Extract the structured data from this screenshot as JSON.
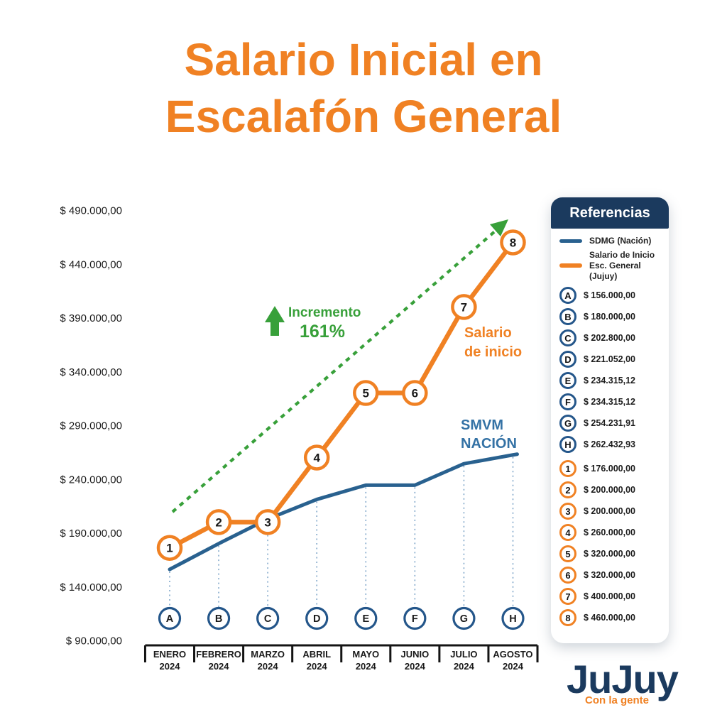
{
  "title": {
    "line1": "Salario Inicial en",
    "line2": "Escalafón General"
  },
  "colors": {
    "orange": "#F08123",
    "navy": "#1B3A5E",
    "blue_line": "#29618F",
    "circle_blue": "#24568A",
    "steel_label": "#3472A5",
    "green": "#38A03A",
    "connector": "#7FA6C9",
    "ink": "#1a1a1a"
  },
  "chart_data": {
    "type": "line",
    "title": "Salario Inicial en Escalafón General",
    "grid": false,
    "legend_position": "right",
    "ylim": [
      90000,
      490000
    ],
    "x_categories": [
      {
        "month": "ENERO",
        "year": "2024"
      },
      {
        "month": "FEBRERO",
        "year": "2024"
      },
      {
        "month": "MARZO",
        "year": "2024"
      },
      {
        "month": "ABRIL",
        "year": "2024"
      },
      {
        "month": "MAYO",
        "year": "2024"
      },
      {
        "month": "JUNIO",
        "year": "2024"
      },
      {
        "month": "JULIO",
        "year": "2024"
      },
      {
        "month": "AGOSTO",
        "year": "2024"
      }
    ],
    "y_ticks": [
      {
        "value": 490000,
        "label": "$ 490.000,00"
      },
      {
        "value": 440000,
        "label": "$ 440.000,00"
      },
      {
        "value": 390000,
        "label": "$ 390.000,00"
      },
      {
        "value": 340000,
        "label": "$ 340.000,00"
      },
      {
        "value": 290000,
        "label": "$ 290.000,00"
      },
      {
        "value": 240000,
        "label": "$ 240.000,00"
      },
      {
        "value": 190000,
        "label": "$ 190.000,00"
      },
      {
        "value": 140000,
        "label": "$ 140.000,00"
      },
      {
        "value": 90000,
        "label": "$ 90.000,00"
      }
    ],
    "series": [
      {
        "name": "SDMG (Nación)",
        "color": "#29618F",
        "point_labels": [
          "A",
          "B",
          "C",
          "D",
          "E",
          "F",
          "G",
          "H"
        ],
        "values": [
          156000,
          180000,
          202800,
          221052,
          234315.12,
          234315.12,
          254231.91,
          262432.93
        ]
      },
      {
        "name": "Salario de Inicio Esc. General (Jujuy)",
        "color": "#F08123",
        "point_labels": [
          "1",
          "2",
          "3",
          "4",
          "5",
          "6",
          "7",
          "8"
        ],
        "values": [
          176000,
          200000,
          200000,
          260000,
          320000,
          320000,
          400000,
          460000
        ]
      }
    ],
    "annotations": {
      "increment_label": "Incremento",
      "increment_value": "161%",
      "orange_label": "Salario de inicio",
      "blue_label": "SMVM NACIÓN"
    }
  },
  "references": {
    "header": "Referencias",
    "legend": [
      {
        "name": "SDMG (Nación)"
      },
      {
        "name": "Salario de Inicio Esc. General (Jujuy)"
      }
    ],
    "blue_items": [
      {
        "key": "A",
        "value": "$ 156.000,00"
      },
      {
        "key": "B",
        "value": "$ 180.000,00"
      },
      {
        "key": "C",
        "value": "$ 202.800,00"
      },
      {
        "key": "D",
        "value": "$ 221.052,00"
      },
      {
        "key": "E",
        "value": "$ 234.315,12"
      },
      {
        "key": "F",
        "value": "$ 234.315,12"
      },
      {
        "key": "G",
        "value": "$ 254.231,91"
      },
      {
        "key": "H",
        "value": "$ 262.432,93"
      }
    ],
    "orange_items": [
      {
        "key": "1",
        "value": "$ 176.000,00"
      },
      {
        "key": "2",
        "value": "$ 200.000,00"
      },
      {
        "key": "3",
        "value": "$ 200.000,00"
      },
      {
        "key": "4",
        "value": "$ 260.000,00"
      },
      {
        "key": "5",
        "value": "$ 320.000,00"
      },
      {
        "key": "6",
        "value": "$ 320.000,00"
      },
      {
        "key": "7",
        "value": "$ 400.000,00"
      },
      {
        "key": "8",
        "value": "$ 460.000,00"
      }
    ]
  },
  "logo": {
    "main": "JuJuy",
    "tagline": "Con la gente"
  }
}
